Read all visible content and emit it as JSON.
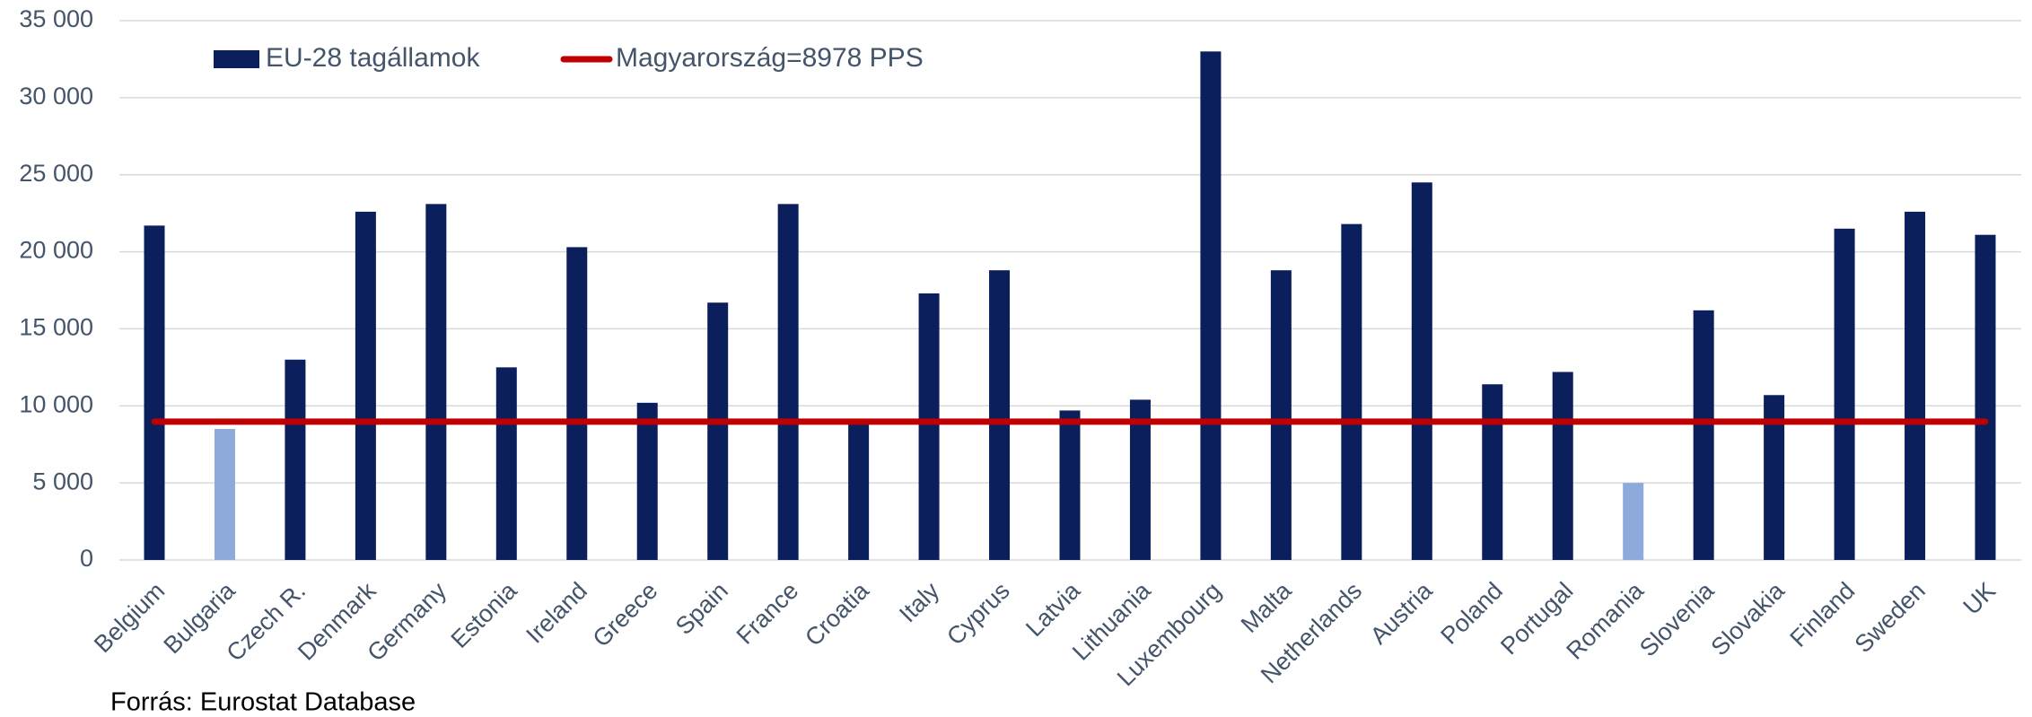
{
  "chart_data": {
    "type": "bar",
    "categories": [
      "Belgium",
      "Bulgaria",
      "Czech R.",
      "Denmark",
      "Germany",
      "Estonia",
      "Ireland",
      "Greece",
      "Spain",
      "France",
      "Croatia",
      "Italy",
      "Cyprus",
      "Latvia",
      "Lithuania",
      "Luxembourg",
      "Malta",
      "Netherlands",
      "Austria",
      "Poland",
      "Portugal",
      "Romania",
      "Slovenia",
      "Slovakia",
      "Finland",
      "Sweden",
      "UK"
    ],
    "series": [
      {
        "name": "EU-28 tagállamok",
        "type": "bar",
        "color": "#0b1f5c",
        "values": [
          21700,
          8500,
          13000,
          22600,
          23100,
          12500,
          20300,
          10200,
          16700,
          23100,
          9000,
          17300,
          18800,
          9700,
          10400,
          33000,
          18800,
          21800,
          24500,
          11400,
          12200,
          5000,
          16200,
          10700,
          21500,
          22600,
          21100
        ],
        "colors": [
          "#0b1f5c",
          "#8eaadb",
          "#0b1f5c",
          "#0b1f5c",
          "#0b1f5c",
          "#0b1f5c",
          "#0b1f5c",
          "#0b1f5c",
          "#0b1f5c",
          "#0b1f5c",
          "#0b1f5c",
          "#0b1f5c",
          "#0b1f5c",
          "#0b1f5c",
          "#0b1f5c",
          "#0b1f5c",
          "#0b1f5c",
          "#0b1f5c",
          "#0b1f5c",
          "#0b1f5c",
          "#0b1f5c",
          "#8eaadb",
          "#0b1f5c",
          "#0b1f5c",
          "#0b1f5c",
          "#0b1f5c",
          "#0b1f5c"
        ]
      },
      {
        "name": "Magyarország=8978 PPS",
        "type": "line",
        "color": "#c00000",
        "values": [
          8978,
          8978,
          8978,
          8978,
          8978,
          8978,
          8978,
          8978,
          8978,
          8978,
          8978,
          8978,
          8978,
          8978,
          8978,
          8978,
          8978,
          8978,
          8978,
          8978,
          8978,
          8978,
          8978,
          8978,
          8978,
          8978,
          8978
        ]
      }
    ],
    "ylim": [
      0,
      35000
    ],
    "yticks": [
      0,
      {
        "value": 5000,
        "label": "5 000"
      },
      {
        "value": 10000,
        "label": "10 000"
      },
      {
        "value": 15000,
        "label": "15 000"
      },
      {
        "value": 20000,
        "label": "20 000"
      },
      {
        "value": 25000,
        "label": "25 000"
      },
      {
        "value": 30000,
        "label": "30 000"
      },
      {
        "value": 35000,
        "label": "35 000"
      }
    ],
    "grid": true,
    "legend": "top-left",
    "source": "Forrás: Eurostat Database"
  }
}
